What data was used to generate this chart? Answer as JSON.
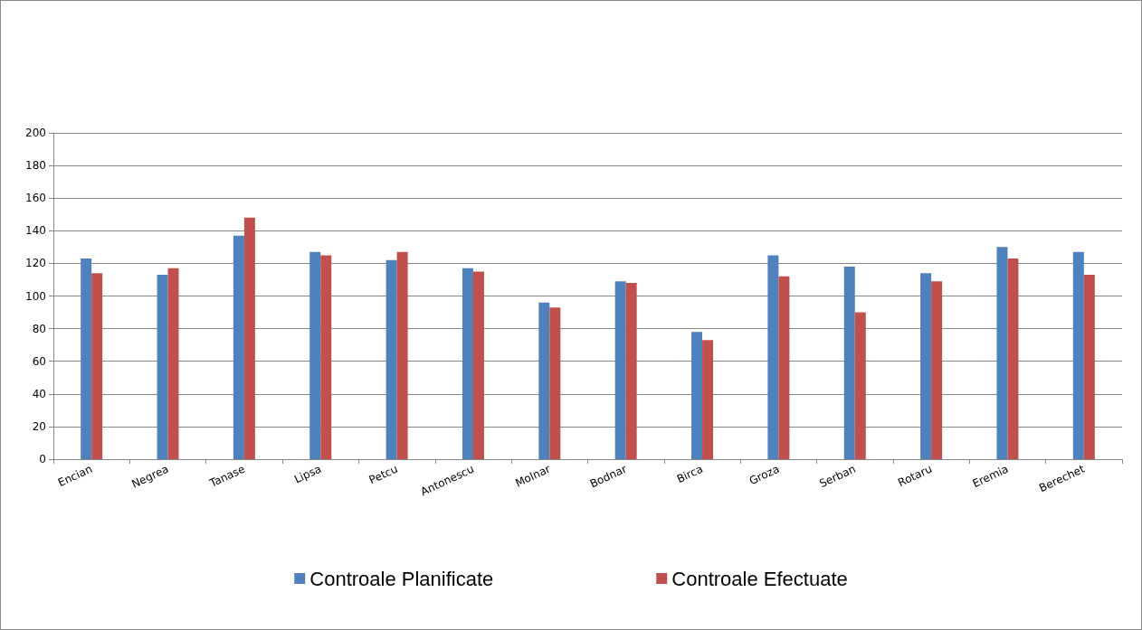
{
  "chart_data": {
    "type": "bar",
    "categories": [
      "Encian",
      "Negrea",
      "Tanase",
      "Lipsa",
      "Petcu",
      "Antonescu",
      "Molnar",
      "Bodnar",
      "Birca",
      "Groza",
      "Serban",
      "Rotaru",
      "Eremia",
      "Berechet"
    ],
    "series": [
      {
        "name": "Controale Planificate",
        "color": "#4f81bd",
        "values": [
          123,
          113,
          137,
          127,
          122,
          117,
          96,
          109,
          78,
          125,
          118,
          114,
          130,
          127
        ]
      },
      {
        "name": "Controale Efectuate",
        "color": "#c0504d",
        "values": [
          114,
          117,
          148,
          125,
          127,
          115,
          93,
          108,
          73,
          112,
          90,
          109,
          123,
          113
        ]
      }
    ],
    "ylim": [
      0,
      200
    ],
    "yticks": [
      0,
      20,
      40,
      60,
      80,
      100,
      120,
      140,
      160,
      180,
      200
    ],
    "grid": "y",
    "legend": "bottom"
  }
}
